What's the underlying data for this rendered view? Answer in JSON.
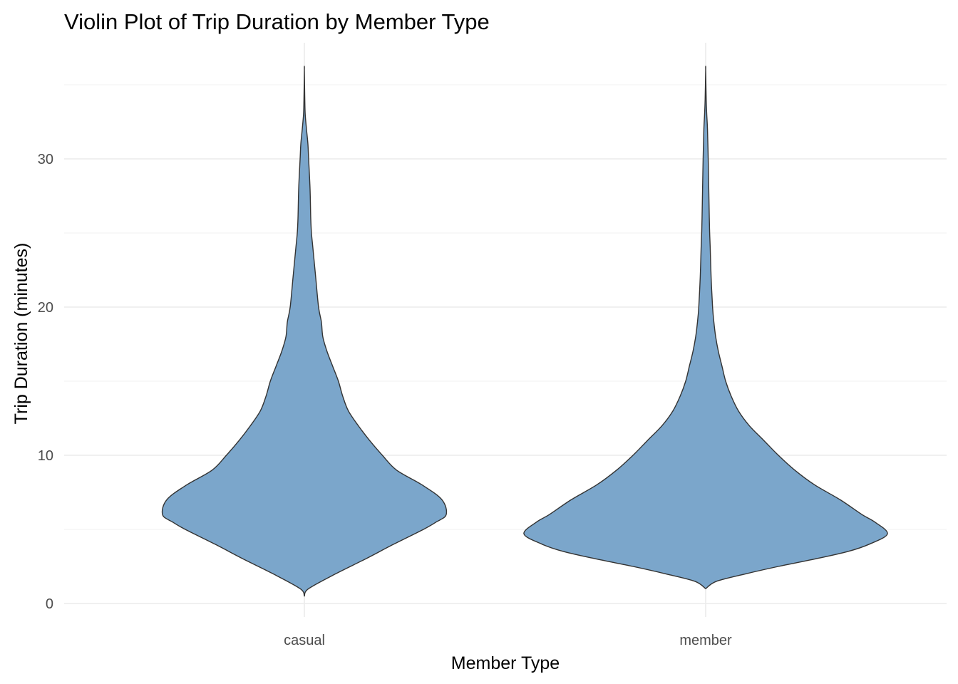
{
  "chart_data": {
    "type": "violin",
    "title": "Violin Plot of Trip Duration by Member Type",
    "xlabel": "Member Type",
    "ylabel": "Trip Duration (minutes)",
    "categories": [
      "casual",
      "member"
    ],
    "ylim": [
      -1,
      37
    ],
    "yticks": [
      0,
      10,
      20,
      30
    ],
    "grid": true,
    "fill_color": "#7BA6CB",
    "outline_color": "#333333",
    "series": [
      {
        "category": "casual",
        "y_min": 0.5,
        "y_max": 36,
        "density_profile": [
          [
            0.5,
            0.0
          ],
          [
            1.0,
            0.03
          ],
          [
            2.0,
            0.22
          ],
          [
            3.0,
            0.43
          ],
          [
            4.0,
            0.63
          ],
          [
            5.0,
            0.84
          ],
          [
            5.5,
            0.93
          ],
          [
            6.0,
            1.0
          ],
          [
            7.0,
            0.97
          ],
          [
            8.0,
            0.83
          ],
          [
            9.0,
            0.65
          ],
          [
            10.0,
            0.55
          ],
          [
            11.0,
            0.46
          ],
          [
            12.0,
            0.38
          ],
          [
            13.0,
            0.31
          ],
          [
            14.0,
            0.27
          ],
          [
            15.0,
            0.24
          ],
          [
            16.0,
            0.2
          ],
          [
            17.0,
            0.16
          ],
          [
            18.0,
            0.13
          ],
          [
            19.0,
            0.12
          ],
          [
            20.0,
            0.1
          ],
          [
            22.0,
            0.08
          ],
          [
            24.0,
            0.06
          ],
          [
            25.0,
            0.05
          ],
          [
            26.0,
            0.045
          ],
          [
            28.0,
            0.04
          ],
          [
            30.0,
            0.03
          ],
          [
            31.0,
            0.025
          ],
          [
            32.0,
            0.015
          ],
          [
            33.0,
            0.006
          ],
          [
            34.0,
            0.003
          ],
          [
            36.0,
            0.0
          ]
        ]
      },
      {
        "category": "member",
        "y_min": 1.0,
        "y_max": 36,
        "density_profile": [
          [
            1.0,
            0.0
          ],
          [
            1.5,
            0.06
          ],
          [
            2.0,
            0.22
          ],
          [
            2.5,
            0.4
          ],
          [
            3.0,
            0.6
          ],
          [
            3.5,
            0.78
          ],
          [
            4.0,
            0.9
          ],
          [
            4.7,
            1.0
          ],
          [
            5.5,
            0.93
          ],
          [
            6.0,
            0.86
          ],
          [
            7.0,
            0.74
          ],
          [
            8.0,
            0.6
          ],
          [
            9.0,
            0.49
          ],
          [
            10.0,
            0.4
          ],
          [
            11.0,
            0.32
          ],
          [
            12.0,
            0.24
          ],
          [
            13.0,
            0.18
          ],
          [
            14.0,
            0.14
          ],
          [
            15.0,
            0.11
          ],
          [
            16.0,
            0.09
          ],
          [
            17.0,
            0.07
          ],
          [
            18.0,
            0.055
          ],
          [
            19.0,
            0.045
          ],
          [
            20.0,
            0.038
          ],
          [
            22.0,
            0.03
          ],
          [
            24.0,
            0.025
          ],
          [
            25.0,
            0.022
          ],
          [
            26.0,
            0.02
          ],
          [
            28.0,
            0.017
          ],
          [
            30.0,
            0.014
          ],
          [
            32.0,
            0.01
          ],
          [
            33.0,
            0.006
          ],
          [
            34.0,
            0.003
          ],
          [
            36.0,
            0.0
          ]
        ]
      }
    ]
  }
}
